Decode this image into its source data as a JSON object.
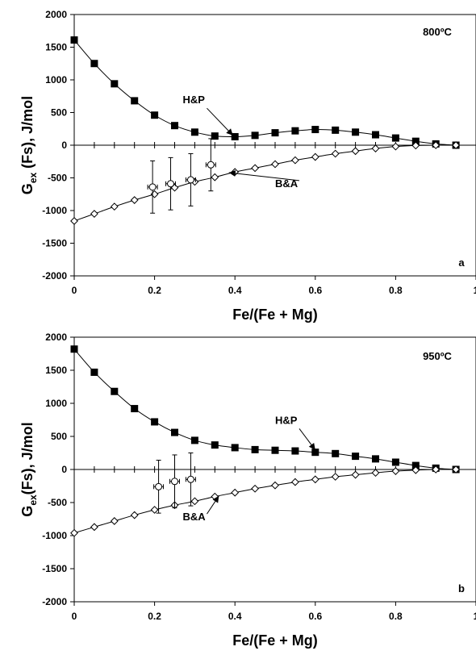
{
  "chart_data": [
    {
      "type": "scatter",
      "panel_label": "a",
      "temperature_label": "800ºC",
      "xlabel": "Fe/(Fe + Mg)",
      "ylabel": "G",
      "ylabel_sub": "ex",
      "ylabel_rest": " (Fs), J/mol",
      "xlim": [
        0,
        1
      ],
      "ylim": [
        -2000,
        2000
      ],
      "xticks": [
        "0",
        "0.2",
        "0.4",
        "0.6",
        "0.8",
        "1"
      ],
      "yticks": [
        "-2000",
        "-1500",
        "-1000",
        "-500",
        "0",
        "500",
        "1000",
        "1500",
        "2000"
      ],
      "series": [
        {
          "name": "H&P",
          "marker": "filled-square",
          "x": [
            0,
            0.05,
            0.1,
            0.15,
            0.2,
            0.25,
            0.3,
            0.35,
            0.4,
            0.45,
            0.5,
            0.55,
            0.6,
            0.65,
            0.7,
            0.75,
            0.8,
            0.85,
            0.9,
            0.95
          ],
          "y": [
            1610,
            1250,
            940,
            680,
            460,
            300,
            200,
            140,
            130,
            150,
            190,
            220,
            240,
            230,
            200,
            160,
            110,
            60,
            20,
            0
          ]
        },
        {
          "name": "B&A",
          "marker": "open-diamond",
          "x": [
            0,
            0.05,
            0.1,
            0.15,
            0.2,
            0.25,
            0.3,
            0.35,
            0.4,
            0.45,
            0.5,
            0.55,
            0.6,
            0.65,
            0.7,
            0.75,
            0.8,
            0.85,
            0.9,
            0.95
          ],
          "y": [
            -1160,
            -1050,
            -940,
            -840,
            -750,
            -650,
            -560,
            -490,
            -410,
            -350,
            -290,
            -230,
            -180,
            -130,
            -90,
            -50,
            -20,
            -5,
            0,
            0
          ]
        }
      ],
      "measurements": [
        {
          "x": 0.195,
          "y": -640,
          "xerr": 0.012,
          "yerr": 400
        },
        {
          "x": 0.24,
          "y": -590,
          "xerr": 0.012,
          "yerr": 400
        },
        {
          "x": 0.29,
          "y": -530,
          "xerr": 0.012,
          "yerr": 400
        },
        {
          "x": 0.34,
          "y": -300,
          "xerr": 0.012,
          "yerr": 400
        }
      ],
      "annotations": [
        {
          "text": "H&P",
          "x": 0.27,
          "y": 640,
          "arrow_to": [
            0.395,
            150
          ]
        },
        {
          "text": "B&A",
          "x": 0.5,
          "y": -640,
          "arrow_to": [
            0.385,
            -420
          ]
        }
      ]
    },
    {
      "type": "scatter",
      "panel_label": "b",
      "temperature_label": "950ºC",
      "xlabel": "Fe/(Fe + Mg)",
      "ylabel": "G",
      "ylabel_sub": "ex",
      "ylabel_rest": "(Fs), J/mol",
      "xlim": [
        0,
        1
      ],
      "ylim": [
        -2000,
        2000
      ],
      "xticks": [
        "0",
        "0.2",
        "0.4",
        "0.6",
        "0.8",
        "1"
      ],
      "yticks": [
        "-2000",
        "-1500",
        "-1000",
        "-500",
        "0",
        "500",
        "1000",
        "1500",
        "2000"
      ],
      "series": [
        {
          "name": "H&P",
          "marker": "filled-square",
          "x": [
            0,
            0.05,
            0.1,
            0.15,
            0.2,
            0.25,
            0.3,
            0.35,
            0.4,
            0.45,
            0.5,
            0.55,
            0.6,
            0.65,
            0.7,
            0.75,
            0.8,
            0.85,
            0.9,
            0.95
          ],
          "y": [
            1820,
            1470,
            1180,
            920,
            720,
            560,
            440,
            370,
            330,
            300,
            290,
            280,
            260,
            240,
            200,
            160,
            110,
            60,
            20,
            0
          ]
        },
        {
          "name": "B&A",
          "marker": "open-diamond",
          "x": [
            0,
            0.05,
            0.1,
            0.15,
            0.2,
            0.25,
            0.3,
            0.35,
            0.4,
            0.45,
            0.5,
            0.55,
            0.6,
            0.65,
            0.7,
            0.75,
            0.8,
            0.85,
            0.9,
            0.95
          ],
          "y": [
            -960,
            -870,
            -780,
            -690,
            -610,
            -540,
            -480,
            -410,
            -350,
            -290,
            -240,
            -190,
            -150,
            -110,
            -80,
            -50,
            -25,
            -10,
            0,
            0
          ]
        }
      ],
      "measurements": [
        {
          "x": 0.21,
          "y": -260,
          "xerr": 0.012,
          "yerr": 400
        },
        {
          "x": 0.25,
          "y": -180,
          "xerr": 0.012,
          "yerr": 400
        },
        {
          "x": 0.29,
          "y": -150,
          "xerr": 0.012,
          "yerr": 400
        }
      ],
      "annotations": [
        {
          "text": "H&P",
          "x": 0.5,
          "y": 690,
          "arrow_to": [
            0.6,
            295
          ]
        },
        {
          "text": "B&A",
          "x": 0.27,
          "y": -770,
          "arrow_to": [
            0.36,
            -400
          ]
        }
      ]
    }
  ]
}
